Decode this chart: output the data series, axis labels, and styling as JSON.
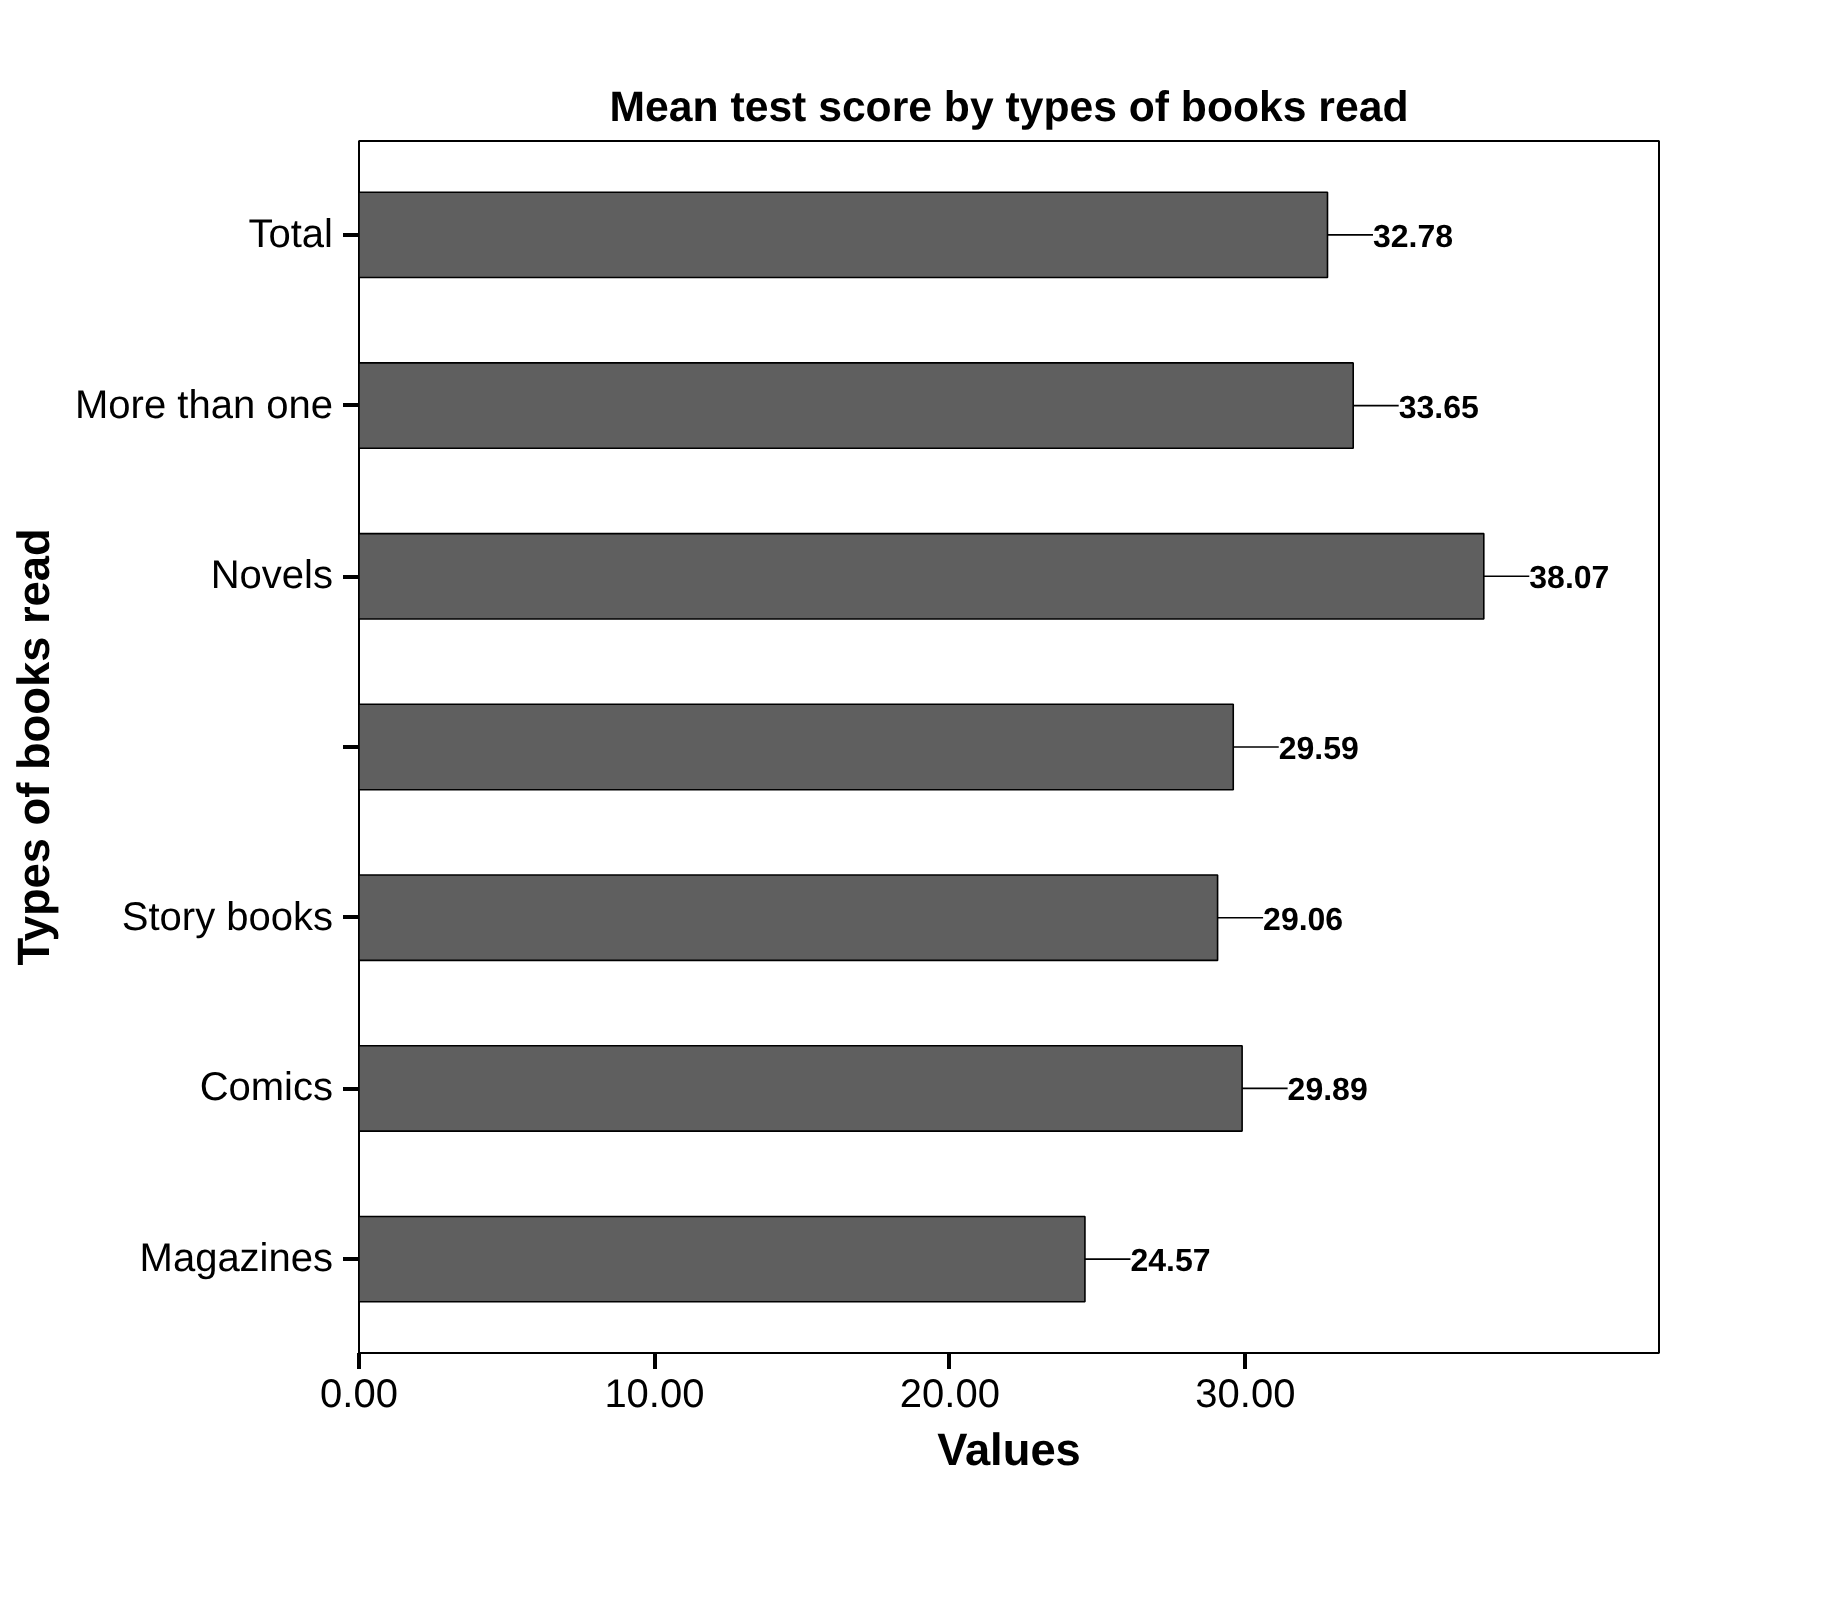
{
  "chart_data": {
    "type": "bar",
    "orientation": "horizontal",
    "title": "Mean test score by types of books read",
    "xlabel": "Values",
    "ylabel": "Types of books read",
    "categories": [
      "Total",
      "More than one",
      "Novels",
      null,
      "Story books",
      "Comics",
      "Magazines"
    ],
    "values": [
      32.78,
      33.65,
      38.07,
      29.59,
      29.06,
      29.89,
      24.57
    ],
    "color": "#5f5f5f",
    "data_labels": true,
    "grid": false,
    "xlim": [
      0,
      44
    ],
    "xticks": [
      {
        "value": 0,
        "label": "0.00"
      },
      {
        "value": 10,
        "label": "10.00"
      },
      {
        "value": 20,
        "label": "20.00"
      },
      {
        "value": 30,
        "label": "30.00"
      }
    ]
  }
}
